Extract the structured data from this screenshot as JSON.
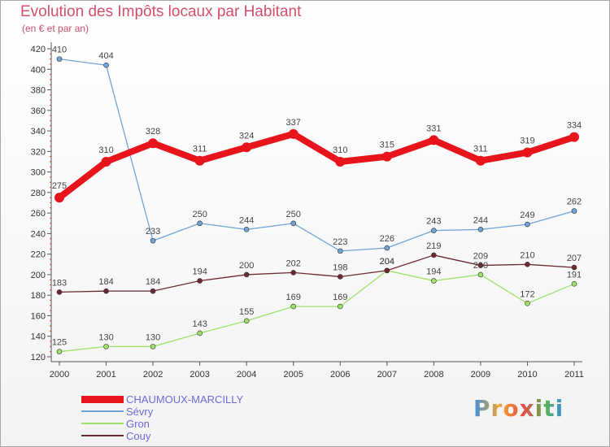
{
  "title": "Evolution des Impôts locaux par Habitant",
  "subtitle": "(en € et par an)",
  "logo_text": "Proxiti",
  "chart_data": {
    "type": "line",
    "title": "Evolution des Impôts locaux par Habitant",
    "subtitle": "(en € et par an)",
    "x": [
      "2000",
      "2001",
      "2002",
      "2003",
      "2004",
      "2005",
      "2006",
      "2007",
      "2008",
      "2009",
      "2010",
      "2011"
    ],
    "ylim": [
      120,
      420
    ],
    "yticks": [
      120,
      140,
      160,
      180,
      200,
      220,
      240,
      260,
      280,
      300,
      320,
      340,
      360,
      380,
      400,
      420
    ],
    "grid": false,
    "legend": "bottom-left",
    "series": [
      {
        "name": "CHAUMOUX-MARCILLY",
        "color": "#e8141b",
        "values": [
          275,
          310,
          328,
          311,
          324,
          337,
          310,
          315,
          331,
          311,
          319,
          334
        ]
      },
      {
        "name": "Sévry",
        "color": "#6fa4d6",
        "values": [
          410,
          404,
          233,
          250,
          244,
          250,
          223,
          226,
          243,
          244,
          249,
          262
        ]
      },
      {
        "name": "Gron",
        "color": "#9ee06a",
        "values": [
          125,
          130,
          130,
          143,
          155,
          169,
          169,
          204,
          194,
          200,
          172,
          191
        ]
      },
      {
        "name": "Couy",
        "color": "#6b2a32",
        "values": [
          183,
          184,
          184,
          194,
          200,
          202,
          198,
          204,
          219,
          209,
          210,
          207
        ]
      }
    ]
  }
}
